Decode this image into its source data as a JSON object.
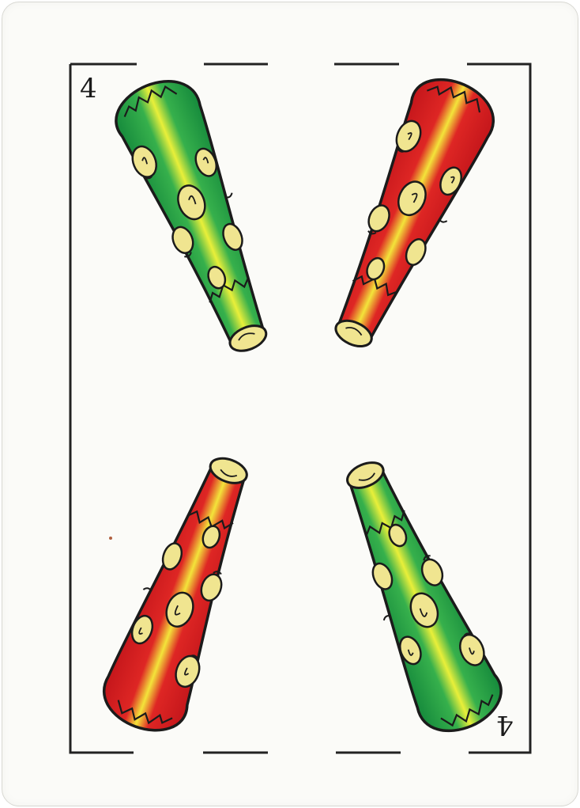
{
  "card": {
    "rank": "4",
    "suit": "bastos",
    "colors": {
      "red": "#d41d1f",
      "green": "#23a04a",
      "yellow": "#f4ee3c",
      "knot": "#f0e590",
      "outline": "#1b1b1b",
      "frame": "#222222",
      "paper": "#fbfbf8"
    },
    "clubs": [
      {
        "name": "club-top-left",
        "color": "green"
      },
      {
        "name": "club-top-right",
        "color": "red"
      },
      {
        "name": "club-bottom-left",
        "color": "red"
      },
      {
        "name": "club-bottom-right",
        "color": "green"
      }
    ]
  }
}
